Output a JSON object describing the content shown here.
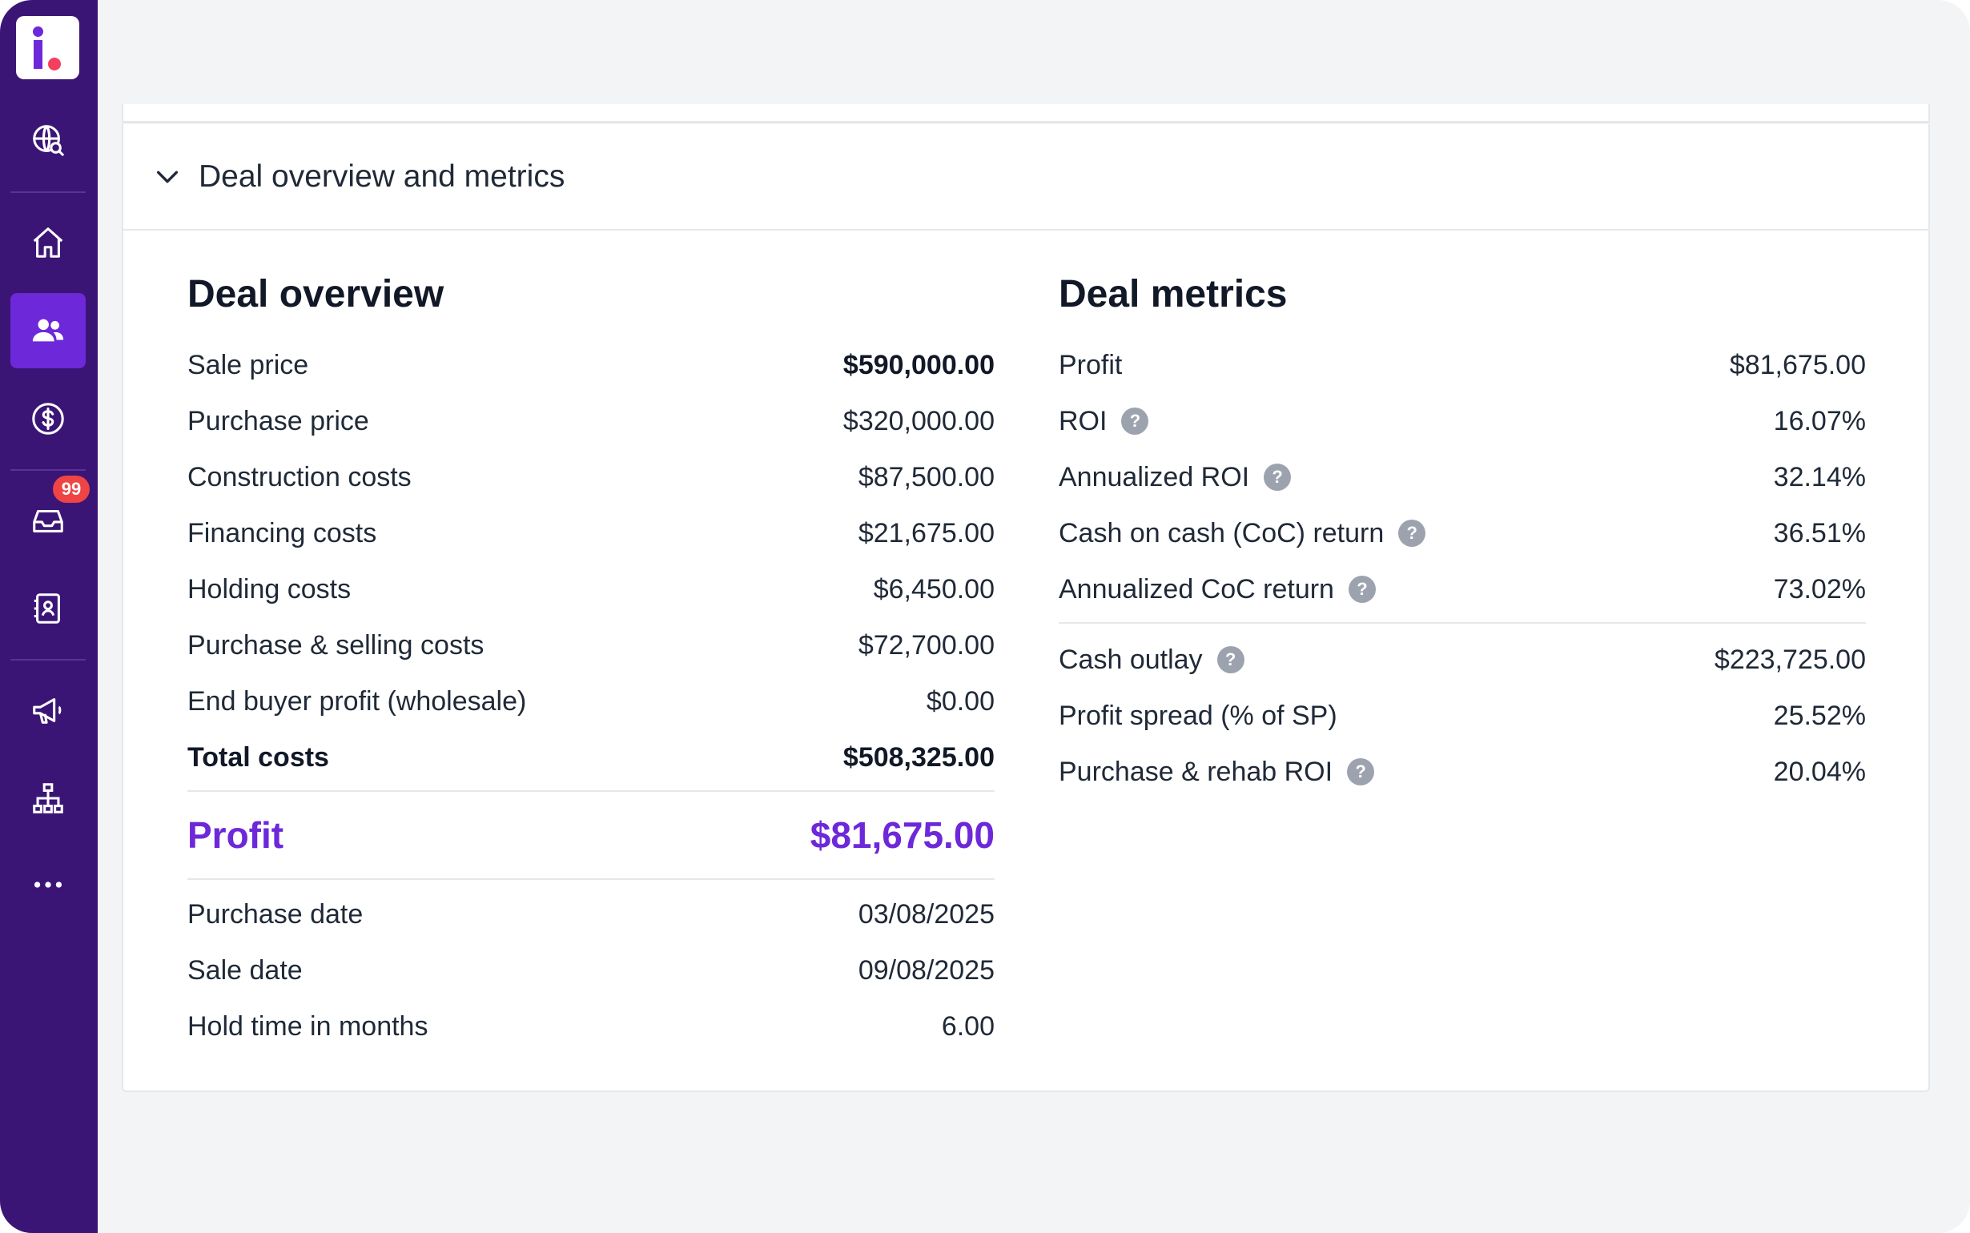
{
  "sidebar": {
    "badge_count": "99",
    "items": [
      {
        "name": "globe-search-icon"
      },
      {
        "name": "home-icon"
      },
      {
        "name": "users-icon",
        "active": true
      },
      {
        "name": "dollar-icon"
      },
      {
        "name": "inbox-icon"
      },
      {
        "name": "contacts-icon"
      },
      {
        "name": "megaphone-icon"
      },
      {
        "name": "org-chart-icon"
      },
      {
        "name": "more-icon"
      }
    ]
  },
  "section": {
    "title": "Deal overview and metrics"
  },
  "overview": {
    "heading": "Deal overview",
    "rows": [
      {
        "label": "Sale price",
        "value": "$590,000.00"
      },
      {
        "label": "Purchase price",
        "value": "$320,000.00"
      },
      {
        "label": "Construction costs",
        "value": "$87,500.00"
      },
      {
        "label": "Financing costs",
        "value": "$21,675.00"
      },
      {
        "label": "Holding costs",
        "value": "$6,450.00"
      },
      {
        "label": "Purchase & selling costs",
        "value": "$72,700.00"
      },
      {
        "label": "End buyer profit (wholesale)",
        "value": "$0.00"
      },
      {
        "label": "Total costs",
        "value": "$508,325.00"
      }
    ],
    "profit_label": "Profit",
    "profit_value": "$81,675.00",
    "dates": [
      {
        "label": "Purchase date",
        "value": "03/08/2025"
      },
      {
        "label": "Sale date",
        "value": "09/08/2025"
      },
      {
        "label": "Hold time in months",
        "value": "6.00"
      }
    ]
  },
  "metrics": {
    "heading": "Deal metrics",
    "help_glyph": "?",
    "rows": [
      {
        "label": "Profit",
        "value": "$81,675.00"
      },
      {
        "label": "ROI",
        "value": "16.07%"
      },
      {
        "label": "Annualized ROI",
        "value": "32.14%"
      },
      {
        "label": "Cash on cash (CoC) return",
        "value": "36.51%"
      },
      {
        "label": "Annualized CoC return",
        "value": "73.02%"
      }
    ],
    "rows2": [
      {
        "label": "Cash outlay",
        "value": "$223,725.00"
      },
      {
        "label": "Profit spread (% of SP)",
        "value": "25.52%"
      },
      {
        "label": "Purchase & rehab ROI",
        "value": "20.04%"
      }
    ]
  },
  "colors": {
    "sidebar_bg": "#3b1576",
    "accent": "#6d28d9",
    "badge": "#ef4444",
    "help_icon": "#9ca3af"
  }
}
